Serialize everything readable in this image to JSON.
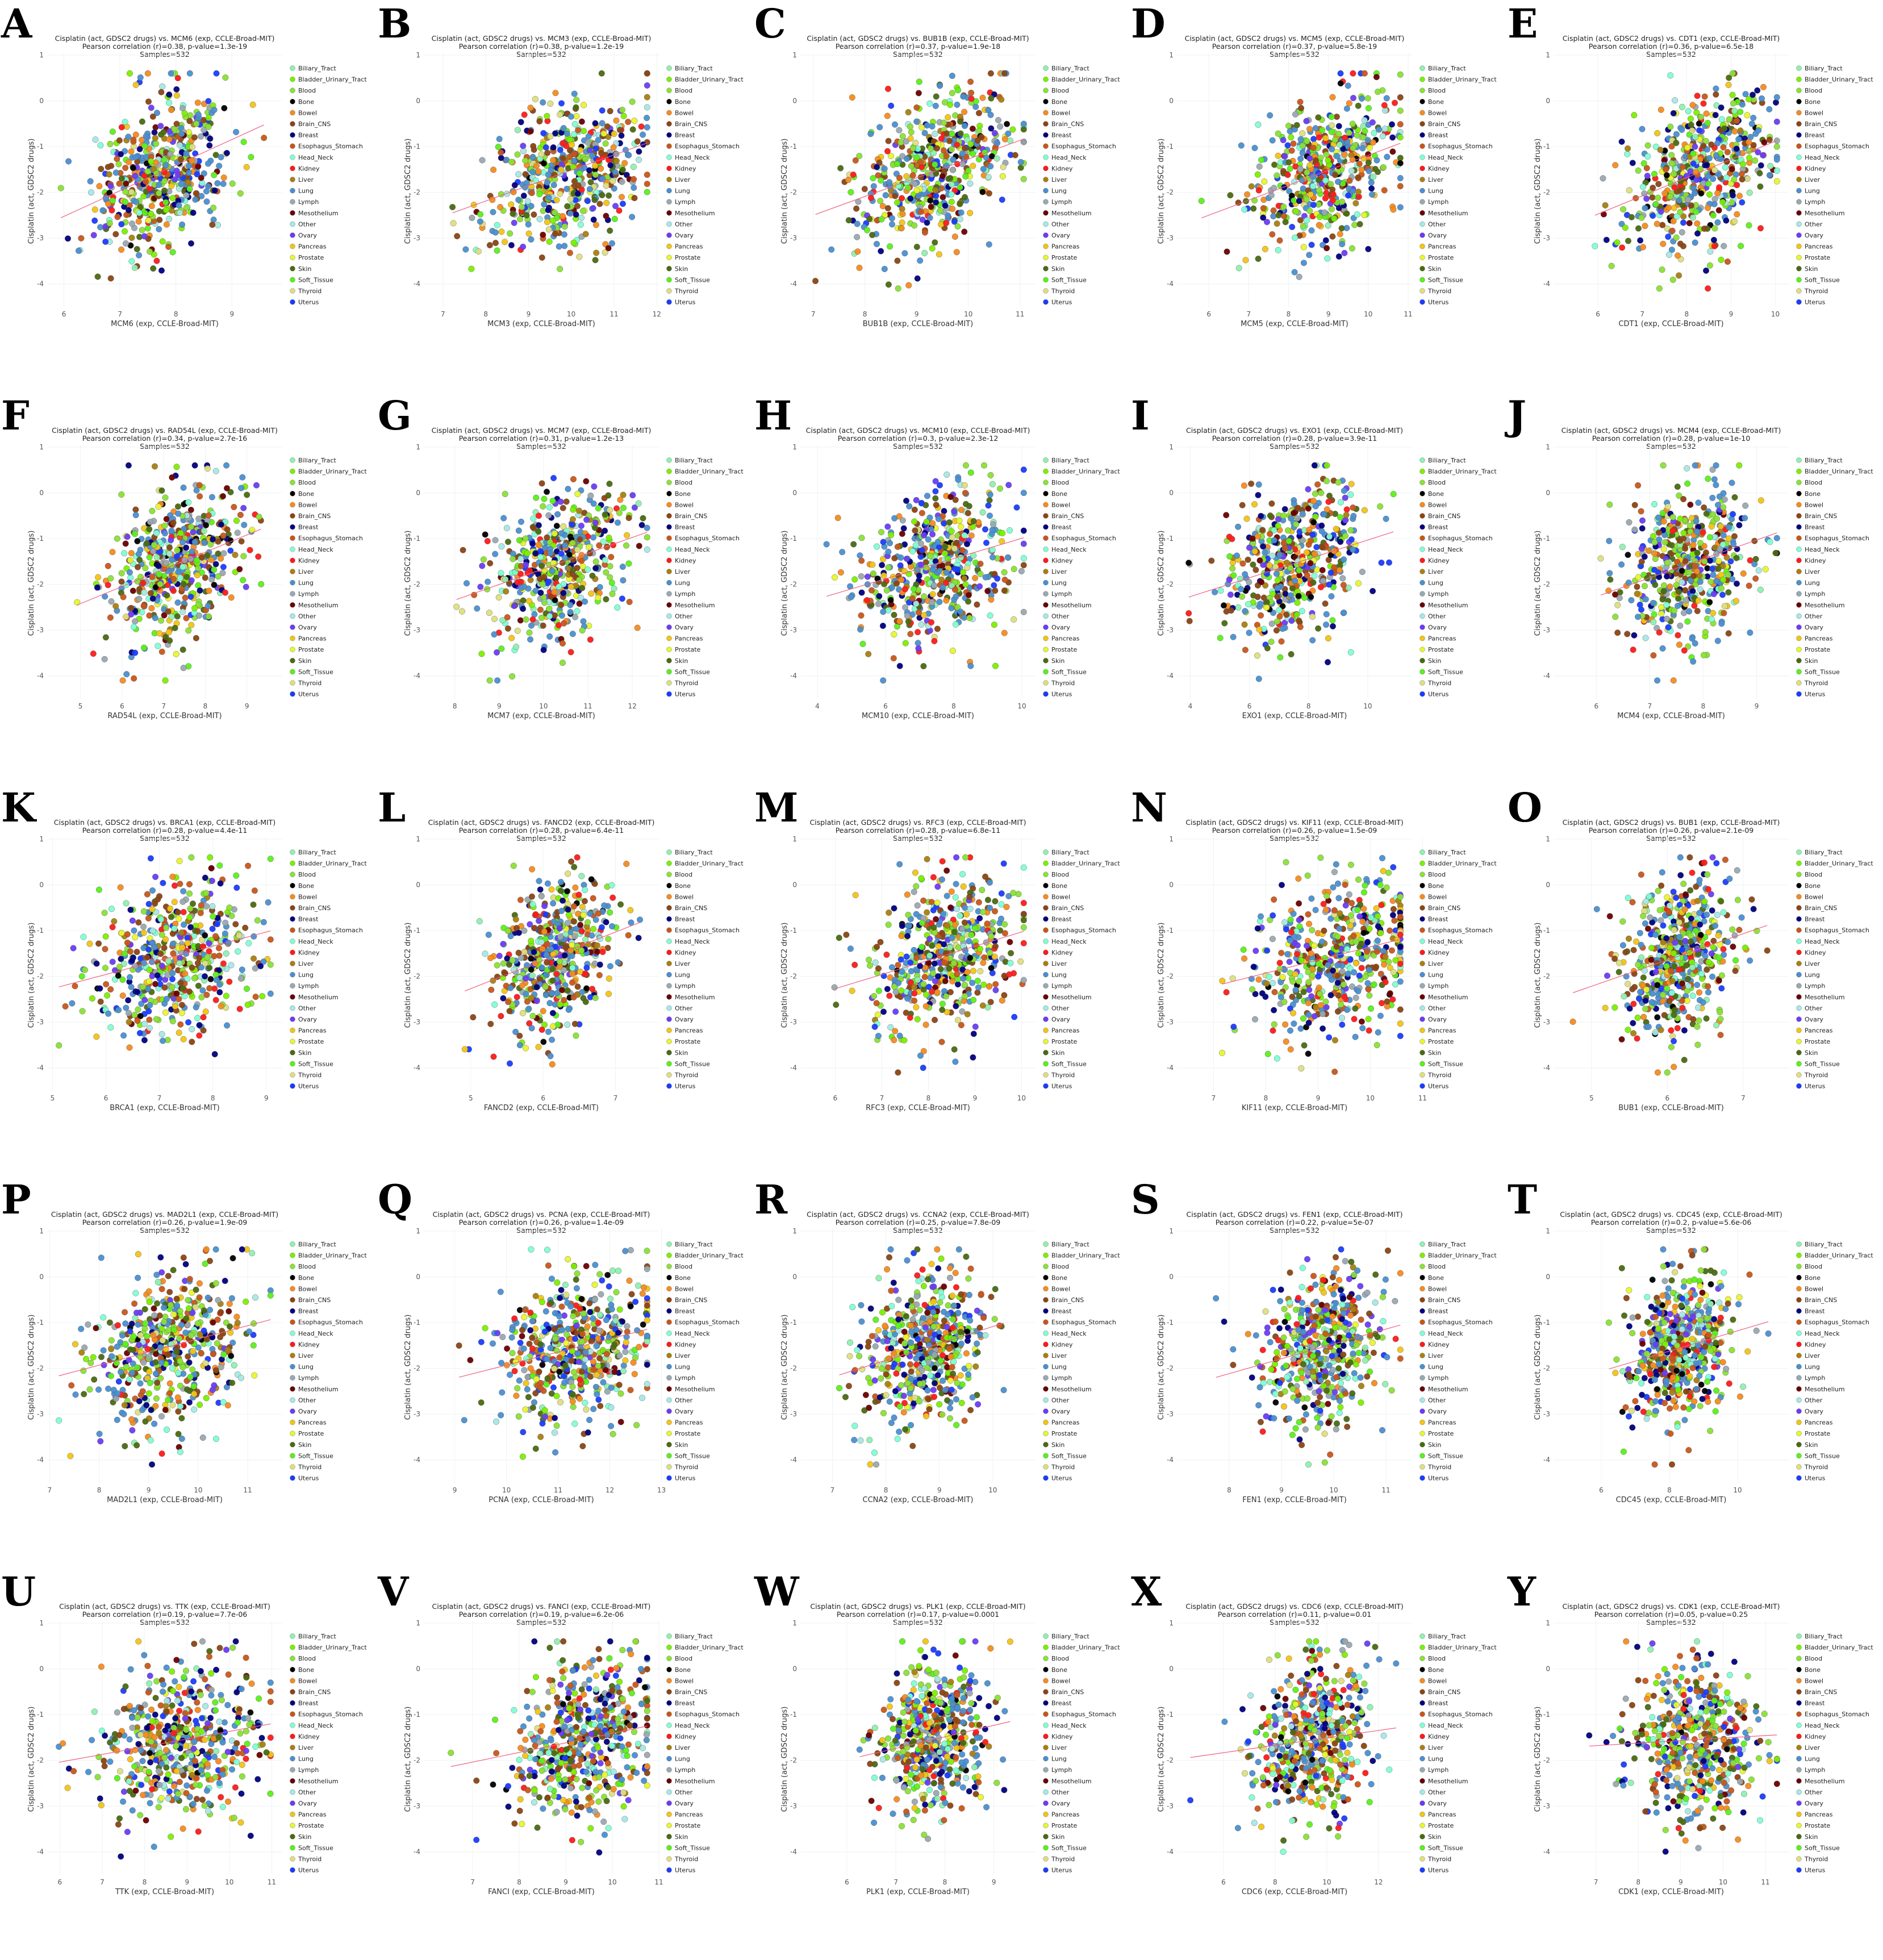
{
  "categories": [
    {
      "name": "Biliary_Tract",
      "color": "#8ff0b0",
      "weight": 1
    },
    {
      "name": "Bladder_Urinary_Tract",
      "color": "#7cf000",
      "weight": 2
    },
    {
      "name": "Blood",
      "color": "#8ae234",
      "weight": 5
    },
    {
      "name": "Bone",
      "color": "#000000",
      "weight": 1
    },
    {
      "name": "Bowel",
      "color": "#f68b1f",
      "weight": 3
    },
    {
      "name": "Brain_CNS",
      "color": "#8b4513",
      "weight": 4
    },
    {
      "name": "Breast",
      "color": "#000080",
      "weight": 3
    },
    {
      "name": "Esophagus_Stomach",
      "color": "#c8561a",
      "weight": 3
    },
    {
      "name": "Head_Neck",
      "color": "#7fffd4",
      "weight": 2
    },
    {
      "name": "Kidney",
      "color": "#ff1a1a",
      "weight": 2
    },
    {
      "name": "Liver",
      "color": "#a87f10",
      "weight": 1
    },
    {
      "name": "Lung",
      "color": "#4a8fd0",
      "weight": 8
    },
    {
      "name": "Lymph",
      "color": "#9aa8b0",
      "weight": 2
    },
    {
      "name": "Mesothelium",
      "color": "#6b0000",
      "weight": 1
    },
    {
      "name": "Other",
      "color": "#a5e8e5",
      "weight": 1
    },
    {
      "name": "Ovary",
      "color": "#6a3cf5",
      "weight": 2
    },
    {
      "name": "Pancreas",
      "color": "#f2c416",
      "weight": 2
    },
    {
      "name": "Prostate",
      "color": "#e8f52e",
      "weight": 1
    },
    {
      "name": "Skin",
      "color": "#4a6a10",
      "weight": 3
    },
    {
      "name": "Soft_Tissue",
      "color": "#5cf01a",
      "weight": 2
    },
    {
      "name": "Thyroid",
      "color": "#dede80",
      "weight": 1
    },
    {
      "name": "Uterus",
      "color": "#1a3cff",
      "weight": 2
    }
  ],
  "chart_data": [
    {
      "panel": "A",
      "gene": "MCM6",
      "title": "Cisplatin (act, GDSC2 drugs) vs. MCM6 (exp, CCLE-Broad-MIT)",
      "stats": "Pearson correlation (r)=0.38, p-value=1.3e-19",
      "samples": "Samples=532",
      "r": 0.38,
      "n": 532,
      "xlabel": "MCM6 (exp, CCLE-Broad-MIT)",
      "ylabel": "Cisplatin (act, GDSC2 drugs)",
      "xticks": [
        6,
        7,
        8,
        9
      ],
      "xlim": [
        5.7,
        9.9
      ],
      "yticks": [
        1,
        0,
        -1,
        -2,
        -3,
        -4
      ],
      "ylim": [
        -4.5,
        1.05
      ],
      "type": "scatter"
    },
    {
      "panel": "B",
      "gene": "MCM3",
      "title": "Cisplatin (act, GDSC2 drugs) vs. MCM3 (exp, CCLE-Broad-MIT)",
      "stats": "Pearson correlation (r)=0.38, p-value=1.2e-19",
      "samples": "Samples=532",
      "r": 0.38,
      "n": 532,
      "xlabel": "MCM3 (exp, CCLE-Broad-MIT)",
      "ylabel": "Cisplatin (act, GDSC2 drugs)",
      "xticks": [
        7,
        8,
        9,
        10,
        11,
        12
      ],
      "xlim": [
        6.55,
        12.05
      ],
      "yticks": [
        1,
        0,
        -1,
        -2,
        -3,
        -4
      ],
      "ylim": [
        -4.5,
        1.05
      ],
      "type": "scatter"
    },
    {
      "panel": "C",
      "gene": "BUB1B",
      "title": "Cisplatin (act, GDSC2 drugs) vs. BUB1B (exp, CCLE-Broad-MIT)",
      "stats": "Pearson correlation (r)=0.37, p-value=1.9e-18",
      "samples": "Samples=532",
      "r": 0.37,
      "n": 532,
      "xlabel": "BUB1B (exp, CCLE-Broad-MIT)",
      "ylabel": "Cisplatin (act, GDSC2 drugs)",
      "xticks": [
        7,
        8,
        9,
        10,
        11
      ],
      "xlim": [
        6.75,
        11.3
      ],
      "yticks": [
        1,
        0,
        -1,
        -2,
        -3,
        -4
      ],
      "ylim": [
        -4.5,
        1.05
      ],
      "type": "scatter"
    },
    {
      "panel": "D",
      "gene": "MCM5",
      "title": "Cisplatin (act, GDSC2 drugs) vs. MCM5 (exp, CCLE-Broad-MIT)",
      "stats": "Pearson correlation (r)=0.37, p-value=5.8e-19",
      "samples": "Samples=532",
      "r": 0.37,
      "n": 532,
      "xlabel": "MCM5 (exp, CCLE-Broad-MIT)",
      "ylabel": "Cisplatin (act, GDSC2 drugs)",
      "xticks": [
        6,
        7,
        8,
        9,
        10,
        11
      ],
      "xlim": [
        5.2,
        11.1
      ],
      "yticks": [
        1,
        0,
        -1,
        -2,
        -3,
        -4
      ],
      "ylim": [
        -4.5,
        1.05
      ],
      "type": "scatter"
    },
    {
      "panel": "E",
      "gene": "CDT1",
      "title": "Cisplatin (act, GDSC2 drugs) vs. CDT1 (exp, CCLE-Broad-MIT)",
      "stats": "Pearson correlation (r)=0.36, p-value=6.5e-18",
      "samples": "Samples=532",
      "r": 0.36,
      "n": 532,
      "xlabel": "CDT1 (exp, CCLE-Broad-MIT)",
      "ylabel": "Cisplatin (act, GDSC2 drugs)",
      "xticks": [
        6,
        7,
        8,
        9,
        10
      ],
      "xlim": [
        5.0,
        10.3
      ],
      "yticks": [
        1,
        0,
        -1,
        -2,
        -3,
        -4
      ],
      "ylim": [
        -4.5,
        1.05
      ],
      "type": "scatter"
    },
    {
      "panel": "F",
      "gene": "RAD54L",
      "title": "Cisplatin (act, GDSC2 drugs) vs. RAD54L (exp, CCLE-Broad-MIT)",
      "stats": "Pearson correlation (r)=0.34, p-value=2.7e-16",
      "samples": "Samples=532",
      "r": 0.34,
      "n": 532,
      "xlabel": "RAD54L (exp, CCLE-Broad-MIT)",
      "ylabel": "Cisplatin (act, GDSC2 drugs)",
      "xticks": [
        5,
        6,
        7,
        8,
        9
      ],
      "xlim": [
        4.2,
        9.85
      ],
      "yticks": [
        1,
        0,
        -1,
        -2,
        -3,
        -4
      ],
      "ylim": [
        -4.5,
        1.05
      ],
      "type": "scatter"
    },
    {
      "panel": "G",
      "gene": "MCM7",
      "title": "Cisplatin (act, GDSC2 drugs) vs. MCM7 (exp, CCLE-Broad-MIT)",
      "stats": "Pearson correlation (r)=0.31, p-value=1.2e-13",
      "samples": "Samples=532",
      "r": 0.31,
      "n": 532,
      "xlabel": "MCM7 (exp, CCLE-Broad-MIT)",
      "ylabel": "Cisplatin (act, GDSC2 drugs)",
      "xticks": [
        8,
        9,
        10,
        11,
        12
      ],
      "xlim": [
        7.3,
        12.6
      ],
      "yticks": [
        1,
        0,
        -1,
        -2,
        -3,
        -4
      ],
      "ylim": [
        -4.5,
        1.05
      ],
      "type": "scatter"
    },
    {
      "panel": "H",
      "gene": "MCM10",
      "title": "Cisplatin (act, GDSC2 drugs) vs. MCM10 (exp, CCLE-Broad-MIT)",
      "stats": "Pearson correlation (r)=0.3, p-value=2.3e-12",
      "samples": "Samples=532",
      "r": 0.3,
      "n": 532,
      "xlabel": "MCM10 (exp, CCLE-Broad-MIT)",
      "ylabel": "Cisplatin (act, GDSC2 drugs)",
      "xticks": [
        4,
        6,
        8,
        10
      ],
      "xlim": [
        3.5,
        10.4
      ],
      "yticks": [
        1,
        0,
        -1,
        -2,
        -3,
        -4
      ],
      "ylim": [
        -4.5,
        1.05
      ],
      "type": "scatter"
    },
    {
      "panel": "I",
      "gene": "EXO1",
      "title": "Cisplatin (act, GDSC2 drugs) vs. EXO1 (exp, CCLE-Broad-MIT)",
      "stats": "Pearson correlation (r)=0.28, p-value=3.9e-11",
      "samples": "Samples=532",
      "r": 0.28,
      "n": 532,
      "xlabel": "EXO1 (exp, CCLE-Broad-MIT)",
      "ylabel": "Cisplatin (act, GDSC2 drugs)",
      "xticks": [
        4,
        6,
        8,
        10
      ],
      "xlim": [
        3.55,
        11.5
      ],
      "yticks": [
        1,
        0,
        -1,
        -2,
        -3,
        -4
      ],
      "ylim": [
        -4.5,
        1.05
      ],
      "type": "scatter"
    },
    {
      "panel": "J",
      "gene": "MCM4",
      "title": "Cisplatin (act, GDSC2 drugs) vs. MCM4 (exp, CCLE-Broad-MIT)",
      "stats": "Pearson correlation (r)=0.28, p-value=1e-10",
      "samples": "Samples=532",
      "r": 0.28,
      "n": 532,
      "xlabel": "MCM4 (exp, CCLE-Broad-MIT)",
      "ylabel": "Cisplatin (act, GDSC2 drugs)",
      "xticks": [
        6,
        7,
        8,
        9
      ],
      "xlim": [
        5.2,
        9.6
      ],
      "yticks": [
        1,
        0,
        -1,
        -2,
        -3,
        -4
      ],
      "ylim": [
        -4.5,
        1.05
      ],
      "type": "scatter"
    },
    {
      "panel": "K",
      "gene": "BRCA1",
      "title": "Cisplatin (act, GDSC2 drugs) vs. BRCA1 (exp, CCLE-Broad-MIT)",
      "stats": "Pearson correlation (r)=0.28, p-value=4.4e-11",
      "samples": "Samples=532",
      "r": 0.28,
      "n": 532,
      "xlabel": "BRCA1 (exp, CCLE-Broad-MIT)",
      "ylabel": "Cisplatin (act, GDSC2 drugs)",
      "xticks": [
        5,
        6,
        7,
        8,
        9
      ],
      "xlim": [
        4.9,
        9.3
      ],
      "yticks": [
        1,
        0,
        -1,
        -2,
        -3,
        -4
      ],
      "ylim": [
        -4.5,
        1.05
      ],
      "type": "scatter"
    },
    {
      "panel": "L",
      "gene": "FANCD2",
      "title": "Cisplatin (act, GDSC2 drugs) vs. FANCD2 (exp, CCLE-Broad-MIT)",
      "stats": "Pearson correlation (r)=0.28, p-value=6.4e-11",
      "samples": "Samples=532",
      "r": 0.28,
      "n": 532,
      "xlabel": "FANCD2 (exp, CCLE-Broad-MIT)",
      "ylabel": "Cisplatin (act, GDSC2 drugs)",
      "xticks": [
        5,
        6,
        7
      ],
      "xlim": [
        4.35,
        7.6
      ],
      "yticks": [
        1,
        0,
        -1,
        -2,
        -3,
        -4
      ],
      "ylim": [
        -4.5,
        1.05
      ],
      "type": "scatter"
    },
    {
      "panel": "M",
      "gene": "RFC3",
      "title": "Cisplatin (act, GDSC2 drugs) vs. RFC3 (exp, CCLE-Broad-MIT)",
      "stats": "Pearson correlation (r)=0.28, p-value=6.8e-11",
      "samples": "Samples=532",
      "r": 0.28,
      "n": 532,
      "xlabel": "RFC3 (exp, CCLE-Broad-MIT)",
      "ylabel": "Cisplatin (act, GDSC2 drugs)",
      "xticks": [
        6,
        7,
        8,
        9,
        10
      ],
      "xlim": [
        5.25,
        10.3
      ],
      "yticks": [
        1,
        0,
        -1,
        -2,
        -3,
        -4
      ],
      "ylim": [
        -4.5,
        1.05
      ],
      "type": "scatter"
    },
    {
      "panel": "N",
      "gene": "KIF11",
      "title": "Cisplatin (act, GDSC2 drugs) vs. KIF11 (exp, CCLE-Broad-MIT)",
      "stats": "Pearson correlation (r)=0.26, p-value=1.5e-09",
      "samples": "Samples=532",
      "r": 0.26,
      "n": 532,
      "xlabel": "KIF11 (exp, CCLE-Broad-MIT)",
      "ylabel": "Cisplatin (act, GDSC2 drugs)",
      "xticks": [
        7,
        8,
        9,
        10,
        11
      ],
      "xlim": [
        6.3,
        10.8
      ],
      "yticks": [
        1,
        0,
        -1,
        -2,
        -3,
        -4
      ],
      "ylim": [
        -4.5,
        1.05
      ],
      "type": "scatter"
    },
    {
      "panel": "O",
      "gene": "BUB1",
      "title": "Cisplatin (act, GDSC2 drugs) vs. BUB1 (exp, CCLE-Broad-MIT)",
      "stats": "Pearson correlation (r)=0.26, p-value=2.1e-09",
      "samples": "Samples=532",
      "r": 0.26,
      "n": 532,
      "xlabel": "BUB1 (exp, CCLE-Broad-MIT)",
      "ylabel": "Cisplatin (act, GDSC2 drugs)",
      "xticks": [
        5,
        6,
        7
      ],
      "xlim": [
        4.5,
        7.6
      ],
      "yticks": [
        1,
        0,
        -1,
        -2,
        -3,
        -4
      ],
      "ylim": [
        -4.5,
        1.05
      ],
      "type": "scatter"
    },
    {
      "panel": "P",
      "gene": "MAD2L1",
      "title": "Cisplatin (act, GDSC2 drugs) vs. MAD2L1 (exp, CCLE-Broad-MIT)",
      "stats": "Pearson correlation (r)=0.26, p-value=1.9e-09",
      "samples": "Samples=532",
      "r": 0.26,
      "n": 532,
      "xlabel": "MAD2L1 (exp, CCLE-Broad-MIT)",
      "ylabel": "Cisplatin (act, GDSC2 drugs)",
      "xticks": [
        7,
        8,
        9,
        10,
        11
      ],
      "xlim": [
        6.95,
        11.7
      ],
      "yticks": [
        1,
        0,
        -1,
        -2,
        -3,
        -4
      ],
      "ylim": [
        -4.5,
        1.05
      ],
      "type": "scatter"
    },
    {
      "panel": "Q",
      "gene": "PCNA",
      "title": "Cisplatin (act, GDSC2 drugs) vs. PCNA (exp, CCLE-Broad-MIT)",
      "stats": "Pearson correlation (r)=0.26, p-value=1.4e-09",
      "samples": "Samples=532",
      "r": 0.26,
      "n": 532,
      "xlabel": "PCNA (exp, CCLE-Broad-MIT)",
      "ylabel": "Cisplatin (act, GDSC2 drugs)",
      "xticks": [
        9,
        10,
        11,
        12,
        13
      ],
      "xlim": [
        8.4,
        12.95
      ],
      "yticks": [
        1,
        0,
        -1,
        -2,
        -3,
        -4
      ],
      "ylim": [
        -4.5,
        1.05
      ],
      "type": "scatter"
    },
    {
      "panel": "R",
      "gene": "CCNA2",
      "title": "Cisplatin (act, GDSC2 drugs) vs. CCNA2 (exp, CCLE-Broad-MIT)",
      "stats": "Pearson correlation (r)=0.25, p-value=7.8e-09",
      "samples": "Samples=532",
      "r": 0.25,
      "n": 532,
      "xlabel": "CCNA2 (exp, CCLE-Broad-MIT)",
      "ylabel": "Cisplatin (act, GDSC2 drugs)",
      "xticks": [
        7,
        8,
        9,
        10
      ],
      "xlim": [
        6.4,
        10.8
      ],
      "yticks": [
        1,
        0,
        -1,
        -2,
        -3,
        -4
      ],
      "ylim": [
        -4.5,
        1.05
      ],
      "type": "scatter"
    },
    {
      "panel": "S",
      "gene": "FEN1",
      "title": "Cisplatin (act, GDSC2 drugs) vs. FEN1 (exp, CCLE-Broad-MIT)",
      "stats": "Pearson correlation (r)=0.22, p-value=5e-07",
      "samples": "Samples=532",
      "r": 0.22,
      "n": 532,
      "xlabel": "FEN1 (exp, CCLE-Broad-MIT)",
      "ylabel": "Cisplatin (act, GDSC2 drugs)",
      "xticks": [
        8,
        9,
        10,
        11
      ],
      "xlim": [
        7.0,
        11.5
      ],
      "yticks": [
        1,
        0,
        -1,
        -2,
        -3,
        -4
      ],
      "ylim": [
        -4.5,
        1.05
      ],
      "type": "scatter"
    },
    {
      "panel": "T",
      "gene": "CDC45",
      "title": "Cisplatin (act, GDSC2 drugs) vs. CDC45 (exp, CCLE-Broad-MIT)",
      "stats": "Pearson correlation (r)=0.2, p-value=5.6e-06",
      "samples": "Samples=532",
      "r": 0.2,
      "n": 532,
      "xlabel": "CDC45 (exp, CCLE-Broad-MIT)",
      "ylabel": "Cisplatin (act, GDSC2 drugs)",
      "xticks": [
        6,
        8,
        10
      ],
      "xlim": [
        4.6,
        11.5
      ],
      "yticks": [
        1,
        0,
        -1,
        -2,
        -3,
        -4
      ],
      "ylim": [
        -4.5,
        1.05
      ],
      "type": "scatter"
    },
    {
      "panel": "U",
      "gene": "TTK",
      "title": "Cisplatin (act, GDSC2 drugs) vs. TTK (exp, CCLE-Broad-MIT)",
      "stats": "Pearson correlation (r)=0.19, p-value=7.7e-06",
      "samples": "Samples=532",
      "r": 0.19,
      "n": 532,
      "xlabel": "TTK (exp, CCLE-Broad-MIT)",
      "ylabel": "Cisplatin (act, GDSC2 drugs)",
      "xticks": [
        6,
        7,
        8,
        9,
        10,
        11
      ],
      "xlim": [
        5.7,
        11.25
      ],
      "yticks": [
        1,
        0,
        -1,
        -2,
        -3,
        -4
      ],
      "ylim": [
        -4.5,
        1.05
      ],
      "type": "scatter"
    },
    {
      "panel": "V",
      "gene": "FANCI",
      "title": "Cisplatin (act, GDSC2 drugs) vs. FANCI (exp, CCLE-Broad-MIT)",
      "stats": "Pearson correlation (r)=0.19, p-value=6.2e-06",
      "samples": "Samples=532",
      "r": 0.19,
      "n": 532,
      "xlabel": "FANCI (exp, CCLE-Broad-MIT)",
      "ylabel": "Cisplatin (act, GDSC2 drugs)",
      "xticks": [
        7,
        8,
        9,
        10,
        11
      ],
      "xlim": [
        5.95,
        11.0
      ],
      "yticks": [
        1,
        0,
        -1,
        -2,
        -3,
        -4
      ],
      "ylim": [
        -4.5,
        1.05
      ],
      "type": "scatter"
    },
    {
      "panel": "W",
      "gene": "PLK1",
      "title": "Cisplatin (act, GDSC2 drugs) vs. PLK1 (exp, CCLE-Broad-MIT)",
      "stats": "Pearson correlation (r)=0.17, p-value=0.0001",
      "samples": "Samples=532",
      "r": 0.17,
      "n": 532,
      "xlabel": "PLK1 (exp, CCLE-Broad-MIT)",
      "ylabel": "Cisplatin (act, GDSC2 drugs)",
      "xticks": [
        6,
        7,
        8,
        9
      ],
      "xlim": [
        5.05,
        9.85
      ],
      "yticks": [
        1,
        0,
        -1,
        -2,
        -3,
        -4
      ],
      "ylim": [
        -4.5,
        1.05
      ],
      "type": "scatter"
    },
    {
      "panel": "X",
      "gene": "CDC6",
      "title": "Cisplatin (act, GDSC2 drugs) vs. CDC6 (exp, CCLE-Broad-MIT)",
      "stats": "Pearson correlation (r)=0.11, p-value=0.01",
      "samples": "Samples=532",
      "r": 0.11,
      "n": 532,
      "xlabel": "CDC6 (exp, CCLE-Broad-MIT)",
      "ylabel": "Cisplatin (act, GDSC2 drugs)",
      "xticks": [
        6,
        8,
        10,
        12
      ],
      "xlim": [
        4.2,
        13.3
      ],
      "yticks": [
        1,
        0,
        -1,
        -2,
        -3,
        -4
      ],
      "ylim": [
        -4.5,
        1.05
      ],
      "type": "scatter"
    },
    {
      "panel": "Y",
      "gene": "CDK1",
      "title": "Cisplatin (act, GDSC2 drugs) vs. CDK1 (exp, CCLE-Broad-MIT)",
      "stats": "Pearson correlation (r)=0.05, p-value=0.25",
      "samples": "Samples=532",
      "r": 0.05,
      "n": 532,
      "xlabel": "CDK1 (exp, CCLE-Broad-MIT)",
      "ylabel": "Cisplatin (act, GDSC2 drugs)",
      "xticks": [
        7,
        8,
        9,
        10,
        11
      ],
      "xlim": [
        6.0,
        11.55
      ],
      "yticks": [
        1,
        0,
        -1,
        -2,
        -3,
        -4
      ],
      "ylim": [
        -4.5,
        1.05
      ],
      "type": "scatter"
    }
  ]
}
